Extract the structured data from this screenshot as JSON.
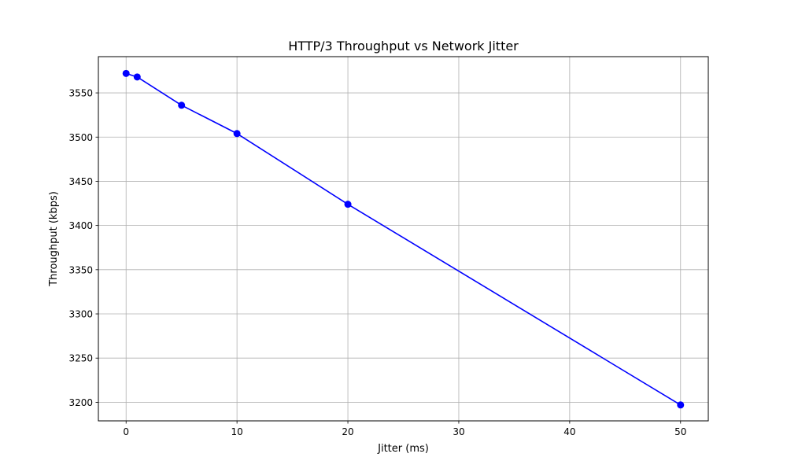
{
  "chart_data": {
    "type": "line",
    "title": "HTTP/3 Throughput vs Network Jitter",
    "xlabel": "Jitter (ms)",
    "ylabel": "Throughput (kbps)",
    "xlim": [
      -2.5,
      52.5
    ],
    "ylim": [
      3179,
      3591
    ],
    "xticks": [
      0,
      10,
      20,
      30,
      40,
      50
    ],
    "yticks": [
      3200,
      3250,
      3300,
      3350,
      3400,
      3450,
      3500,
      3550
    ],
    "grid": true,
    "series": [
      {
        "color": "#0000ff",
        "marker": "circle",
        "x": [
          0,
          1,
          5,
          10,
          20,
          50
        ],
        "y": [
          3572,
          3568,
          3536,
          3504,
          3424,
          3197
        ]
      }
    ]
  }
}
